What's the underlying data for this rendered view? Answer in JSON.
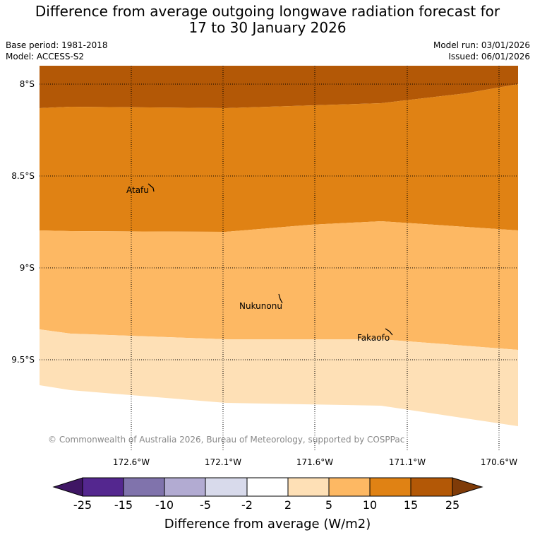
{
  "title_line1": "Difference from average outgoing longwave radiation forecast for",
  "title_line2": "17 to 30 January 2026",
  "base_period": "Base period: 1981-2018",
  "model": "Model: ACCESS-S2",
  "model_run": "Model run: 03/01/2026",
  "issued": "Issued: 06/01/2026",
  "lat_labels": [
    "8°S",
    "8.5°S",
    "9°S",
    "9.5°S"
  ],
  "lon_labels": [
    "172.6°W",
    "172.1°W",
    "171.6°W",
    "171.1°W",
    "170.6°W"
  ],
  "places": [
    "Atafu",
    "Nukunonu",
    "Fakaofo"
  ],
  "copyright": "© Commonwealth of Australia 2026, Bureau of Meteorology, supported by COSPPac",
  "legend": {
    "ticks": [
      "-25",
      "-15",
      "-10",
      "-5",
      "-2",
      "2",
      "5",
      "10",
      "15",
      "25"
    ],
    "colors": [
      "#3f1664",
      "#54278f",
      "#8073ac",
      "#b2abd2",
      "#d8daeb",
      "#ffffff",
      "#fee0b6",
      "#fdb863",
      "#e08214",
      "#b35806",
      "#7f3b08"
    ],
    "label": "Difference from average (W/m2)"
  }
}
